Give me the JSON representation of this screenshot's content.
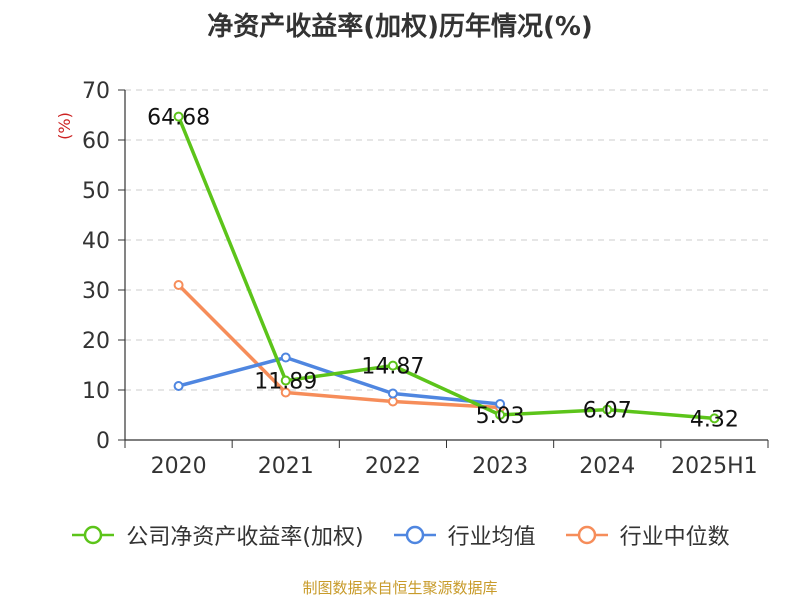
{
  "chart_data": {
    "type": "line",
    "title": "净资产收益率(加权)历年情况(%)",
    "ylabel": "(%)",
    "ylim": [
      0,
      70
    ],
    "yticks": [
      0,
      10,
      20,
      30,
      40,
      50,
      60,
      70
    ],
    "grid": true,
    "legend_position": "bottom",
    "categories": [
      "2020",
      "2021",
      "2022",
      "2023",
      "2024",
      "2025H1"
    ],
    "series": [
      {
        "name": "公司净资产收益率(加权)",
        "color": "#5cc41a",
        "values": [
          64.68,
          11.89,
          14.87,
          5.03,
          6.07,
          4.32
        ],
        "labels": [
          "64.68",
          "11.89",
          "14.87",
          "5.03",
          "6.07",
          "4.32"
        ]
      },
      {
        "name": "行业均值",
        "color": "#4f86e0",
        "values": [
          10.8,
          16.5,
          9.3,
          7.2,
          null,
          null
        ]
      },
      {
        "name": "行业中位数",
        "color": "#f68d5a",
        "values": [
          31.0,
          9.5,
          7.7,
          6.5,
          null,
          null
        ]
      }
    ]
  },
  "source": "制图数据来自恒生聚源数据库"
}
